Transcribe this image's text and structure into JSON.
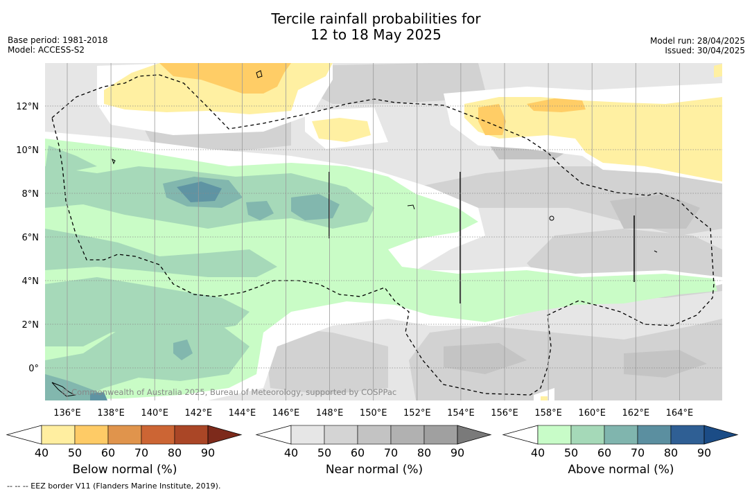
{
  "header": {
    "title_line1": "Tercile rainfall probabilities for",
    "title_line2": "12 to 18 May 2025",
    "base_period": "Base period: 1981-2018",
    "model": "Model: ACCESS-S2",
    "model_run": "Model run: 28/04/2025",
    "issued": "Issued: 30/04/2025"
  },
  "map": {
    "lon_labels": [
      "136°E",
      "138°E",
      "140°E",
      "142°E",
      "144°E",
      "146°E",
      "148°E",
      "150°E",
      "152°E",
      "154°E",
      "156°E",
      "158°E",
      "160°E",
      "162°E",
      "164°E"
    ],
    "lat_labels": [
      "12°N",
      "10°N",
      "8°N",
      "6°N",
      "4°N",
      "2°N",
      "0°"
    ],
    "copyright": "© Commonwealth of Australia 2025, Bureau of Meteorology, supported by COSPPac",
    "colors": {
      "below_40": "#fff0a8",
      "below_50": "#ffd76e",
      "near_40": "#e6e6e6",
      "near_50": "#d3d3d3",
      "near_60": "#c4c4c4",
      "above_40": "#c9fcc6",
      "above_50": "#a5d9b8",
      "above_60": "#7fb6ae",
      "above_70": "#5f95a3"
    }
  },
  "colorbars": [
    {
      "label": "Below normal (%)",
      "ticks": [
        "40",
        "50",
        "60",
        "70",
        "80",
        "90"
      ],
      "colors": [
        "#ffeea0",
        "#fecb66",
        "#e0944c",
        "#cc6534",
        "#aa4626"
      ],
      "extend_color": "#7d2a1b"
    },
    {
      "label": "Near normal (%)",
      "ticks": [
        "40",
        "50",
        "60",
        "70",
        "80",
        "90"
      ],
      "colors": [
        "#e6e6e6",
        "#d4d4d4",
        "#c3c3c3",
        "#b1b1b1",
        "#a0a0a0"
      ],
      "extend_color": "#7a7a7a"
    },
    {
      "label": "Above normal (%)",
      "ticks": [
        "40",
        "50",
        "60",
        "70",
        "80",
        "90"
      ],
      "colors": [
        "#c8fcc8",
        "#a5d9b8",
        "#80b5ae",
        "#5b8fa0",
        "#2f5f94"
      ],
      "extend_color": "#1b4c86"
    }
  ],
  "footnote": "--  --  -- EEZ border V11 (Flanders Marine Institute, 2019)."
}
